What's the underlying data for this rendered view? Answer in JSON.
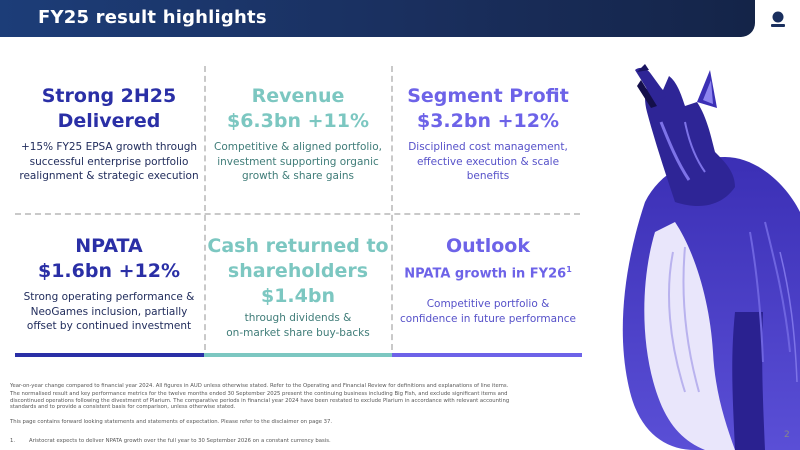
{
  "header": {
    "title": "FY25 result highlights"
  },
  "cells": {
    "strong": {
      "title_l1": "Strong 2H25",
      "title_l2": "Delivered",
      "desc_l1": "+15% FY25 EPSA growth through",
      "desc_l2": "successful enterprise portfolio",
      "desc_l3": "realignment & strategic execution"
    },
    "revenue": {
      "title": "Revenue",
      "value": "$6.3bn +11%",
      "desc_l1": "Competitive & aligned portfolio,",
      "desc_l2": "investment supporting organic",
      "desc_l3": "growth & share gains"
    },
    "segment": {
      "title": "Segment Profit",
      "value": "$3.2bn +12%",
      "desc_l1": "Disciplined cost management,",
      "desc_l2": "effective execution & scale",
      "desc_l3": "benefits"
    },
    "npata": {
      "title": "NPATA",
      "value": "$1.6bn +12%",
      "desc_l1": "Strong operating performance &",
      "desc_l2": "NeoGames inclusion, partially",
      "desc_l3": "offset by continued investment"
    },
    "cash": {
      "title_l1": "Cash returned to",
      "title_l2": "shareholders",
      "value": "$1.4bn",
      "desc_l1": "through dividends &",
      "desc_l2": "on-market share buy-backs"
    },
    "outlook": {
      "title": "Outlook",
      "subtitle": "NPATA growth in FY26",
      "subtitle_sup": "1",
      "desc_l1": "Competitive portfolio &",
      "desc_l2": "confidence in future performance"
    }
  },
  "colors": {
    "navy": "#2a2fa6",
    "teal": "#7cc7c1",
    "purple": "#6d63e8",
    "header": "#1a2f5e"
  },
  "footer": {
    "line1": "Year-on-year change compared to financial year 2024. All figures in AUD unless otherwise stated. Refer to the Operating and Financial Review for definitions and explanations of line items.",
    "line2": "The normalised result and key performance metrics for the twelve months ended 30 September 2025 present the continuing business including Big Fish, and exclude significant items and discontinued operations following the divestment of Plarium. The comparative periods in financial year 2024 have been restated to exclude Plarium in accordance with relevant accounting standards and to provide a consistent basis for comparison, unless otherwise stated.",
    "line3": "This page contains forward looking statements and statements of expectation. Please refer to the disclaimer on page 37.",
    "note_num": "1.",
    "note_text": "Aristocrat expects to deliver NPATA growth over the full year to 30 September 2026 on a constant currency basis."
  },
  "page_number": "2",
  "icons": {
    "logo": "aristocrat-logo-icon",
    "illustration": "howling-wolf-illustration"
  }
}
